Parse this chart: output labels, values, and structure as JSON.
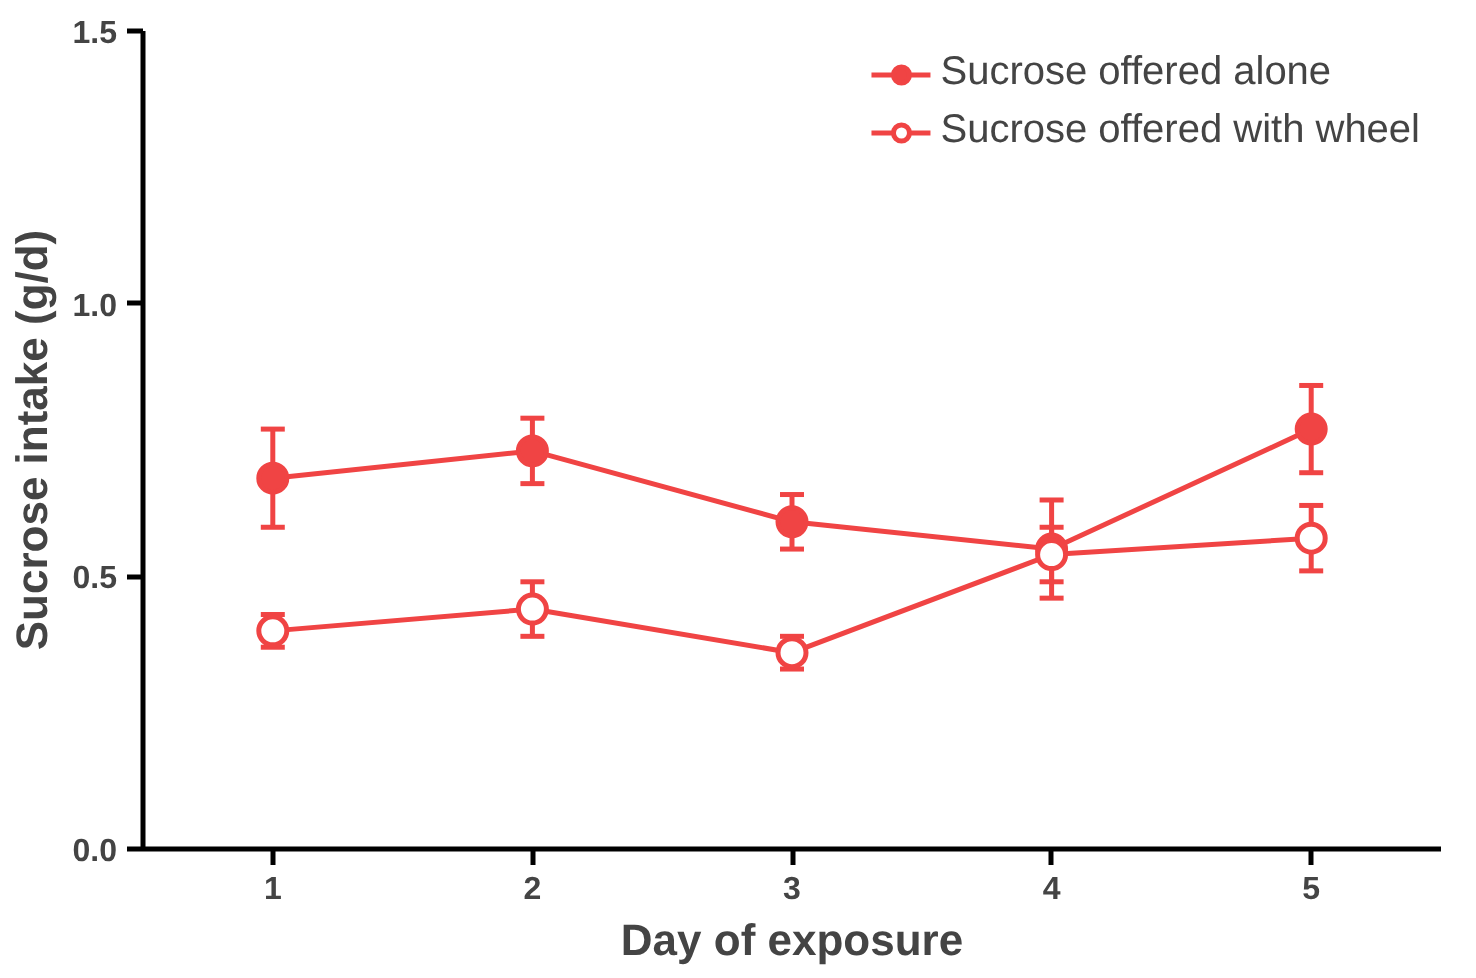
{
  "chart_data": {
    "type": "line",
    "xlabel": "Day of exposure",
    "ylabel": "Sucrose intake (g/d)",
    "x": [
      1,
      2,
      3,
      4,
      5
    ],
    "xlim": [
      0.5,
      5.5
    ],
    "xticks": [
      1,
      2,
      3,
      4,
      5
    ],
    "ylim": [
      0,
      1.5
    ],
    "yticks": [
      {
        "value": 0,
        "label": "0.0"
      },
      {
        "value": 0.5,
        "label": "0.5"
      },
      {
        "value": 1.0,
        "label": "1.0"
      },
      {
        "value": 1.5,
        "label": "1.5"
      }
    ],
    "grid": false,
    "legend": "top right",
    "marker": "circle",
    "line_style": "solid",
    "series": [
      {
        "name": "Sucrose offered alone",
        "color": "#f04444",
        "values": [
          0.68,
          0.73,
          0.6,
          0.55,
          0.77
        ],
        "errors": [
          0.09,
          0.06,
          0.05,
          0.09,
          0.08
        ]
      },
      {
        "name": "Sucrose offered with wheel",
        "color": "#f04444",
        "values": [
          0.4,
          0.44,
          0.36,
          0.54,
          0.57
        ],
        "errors": [
          0.03,
          0.05,
          0.03,
          0.05,
          0.06
        ]
      }
    ]
  }
}
